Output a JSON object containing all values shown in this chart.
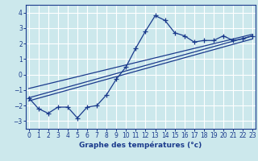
{
  "xlabel": "Graphe des températures (°c)",
  "background_color": "#cce8ec",
  "grid_color": "#ffffff",
  "line_color": "#1a3a8c",
  "x_data": [
    0,
    1,
    2,
    3,
    4,
    5,
    6,
    7,
    8,
    9,
    10,
    11,
    12,
    13,
    14,
    15,
    16,
    17,
    18,
    19,
    20,
    21,
    22,
    23
  ],
  "y_data": [
    -1.5,
    -2.2,
    -2.5,
    -2.1,
    -2.1,
    -2.8,
    -2.1,
    -2.0,
    -1.3,
    -0.3,
    0.5,
    1.7,
    2.8,
    3.8,
    3.5,
    2.7,
    2.5,
    2.1,
    2.2,
    2.2,
    2.5,
    2.2,
    2.3,
    2.5
  ],
  "xlim": [
    -0.3,
    23.3
  ],
  "ylim": [
    -3.5,
    4.5
  ],
  "yticks": [
    -3,
    -2,
    -1,
    0,
    1,
    2,
    3,
    4
  ],
  "xticks": [
    0,
    1,
    2,
    3,
    4,
    5,
    6,
    7,
    8,
    9,
    10,
    11,
    12,
    13,
    14,
    15,
    16,
    17,
    18,
    19,
    20,
    21,
    22,
    23
  ],
  "reg_lines": [
    {
      "x0": 0,
      "y0": -1.5,
      "x1": 23,
      "y1": 2.5
    },
    {
      "x0": 0,
      "y0": -1.7,
      "x1": 23,
      "y1": 2.3
    },
    {
      "x0": 0,
      "y0": -0.9,
      "x1": 23,
      "y1": 2.6
    }
  ]
}
